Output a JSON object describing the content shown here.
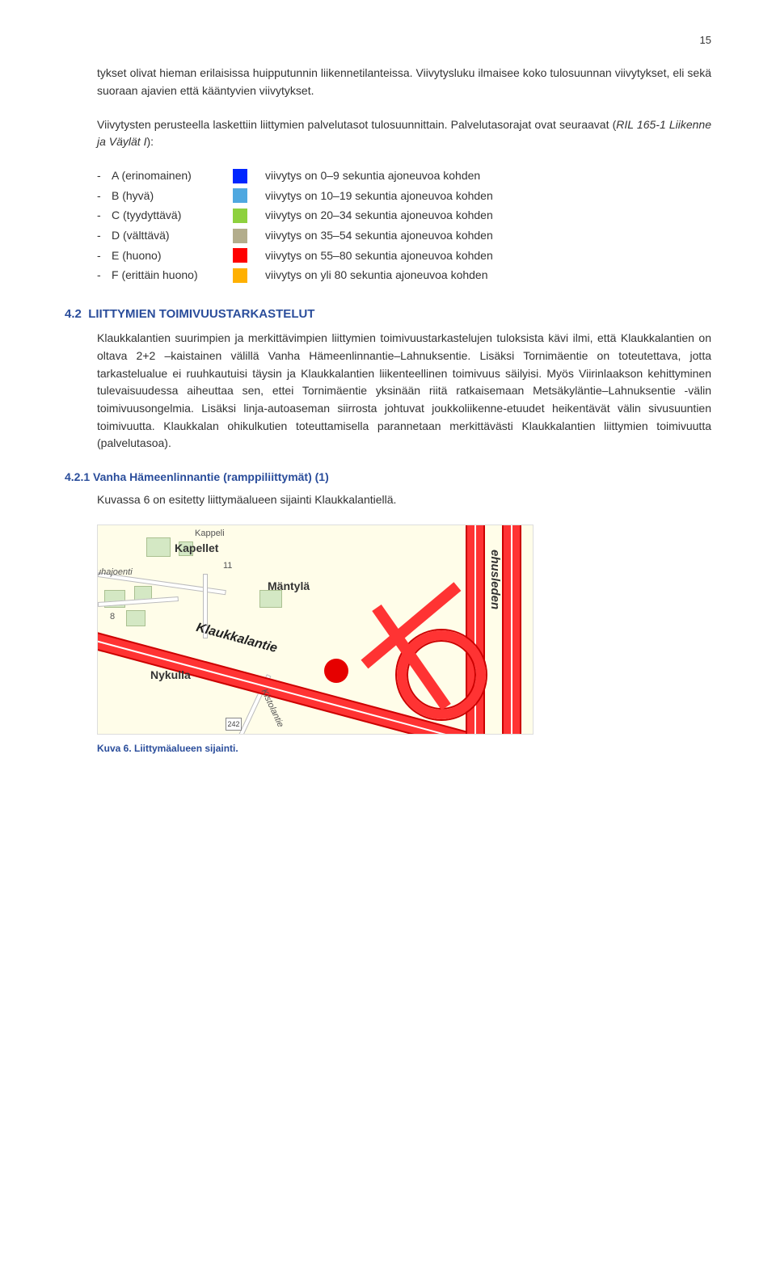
{
  "page_number": "15",
  "intro_para": "tykset olivat hieman erilaisissa huipputunnin liikennetilanteissa. Viivytysluku ilmaisee koko tulosuunnan viivytykset, eli sekä suoraan ajavien että kääntyvien viivytykset.",
  "method_sentence": "Viivytysten perusteella laskettiin liittymien palvelutasot tulosuunnittain. Palvelutasorajat ovat seuraavat (",
  "method_ref": "RIL 165-1 Liikenne ja Väylät I",
  "method_tail": "):",
  "legend": [
    {
      "label": "A (erinomainen)",
      "color": "#0026ff",
      "desc": "viivytys on 0–9 sekuntia ajoneuvoa kohden"
    },
    {
      "label": "B (hyvä)",
      "color": "#4fa8e0",
      "desc": "viivytys on 10–19 sekuntia ajoneuvoa kohden"
    },
    {
      "label": "C (tyydyttävä)",
      "color": "#8ed13e",
      "desc": "viivytys on 20–34 sekuntia ajoneuvoa kohden"
    },
    {
      "label": "D (välttävä)",
      "color": "#b3ad8c",
      "desc": "viivytys on 35–54 sekuntia ajoneuvoa kohden"
    },
    {
      "label": "E (huono)",
      "color": "#ff0000",
      "desc": "viivytys on 55–80 sekuntia ajoneuvoa kohden"
    },
    {
      "label": "F (erittäin huono)",
      "color": "#ffb000",
      "desc": "viivytys on yli 80 sekuntia ajoneuvoa kohden"
    }
  ],
  "section_4_2_num": "4.2",
  "section_4_2_title": "LIITTYMIEN TOIMIVUUSTARKASTELUT",
  "section_4_2_body": "Klaukkalantien suurimpien ja merkittävimpien liittymien toimivuustarkastelujen tuloksista kävi ilmi, että Klaukkalantien on oltava 2+2 –kaistainen välillä Vanha Hämeenlinnantie–Lahnuksentie. Lisäksi Tornimäentie on toteutettava, jotta tarkastelualue ei ruuhkautuisi täysin ja Klaukkalantien liikenteellinen toimivuus säilyisi. Myös Viirinlaakson kehittyminen tulevaisuudessa aiheuttaa sen, ettei Tornimäentie yksinään riitä ratkaisemaan Metsäkyläntie–Lahnuksentie -välin toimivuusongelmia. Lisäksi linja-autoaseman siirrosta johtuvat joukkoliikenne-etuudet heikentävät välin sivusuuntien toimivuutta. Klaukkalan ohikulkutien toteuttamisella parannetaan merkittävästi Klaukkalantien liittymien toimivuutta (palvelutasoa).",
  "section_4_2_1_num": "4.2.1",
  "section_4_2_1_title": "Vanha Hämeenlinnantie (ramppiliittymät) (1)",
  "section_4_2_1_body": "Kuvassa 6 on esitetty liittymäalueen sijainti Klaukkalantiellä.",
  "caption": "Kuva 6. Liittymäalueen sijainti.",
  "map": {
    "labels": {
      "kapellet": "Kapellet",
      "uhajoenti": "uhajoenti",
      "mantyla": "Mäntylä",
      "nykulla": "Nykulla",
      "klaukkalantie": "Klaukkalantie",
      "kistolantie": "Kistolantie",
      "kappeli": "Kappeli",
      "ehusleden": "ehusleden",
      "num11": "11",
      "num8": "8",
      "route": "242"
    },
    "colors": {
      "bg": "#fffde9",
      "main_road": "#ff3333",
      "main_road_edge": "#cc0000",
      "minor_road": "#ffffff",
      "dot": "#e60000",
      "green": "#d4e8c4"
    }
  }
}
